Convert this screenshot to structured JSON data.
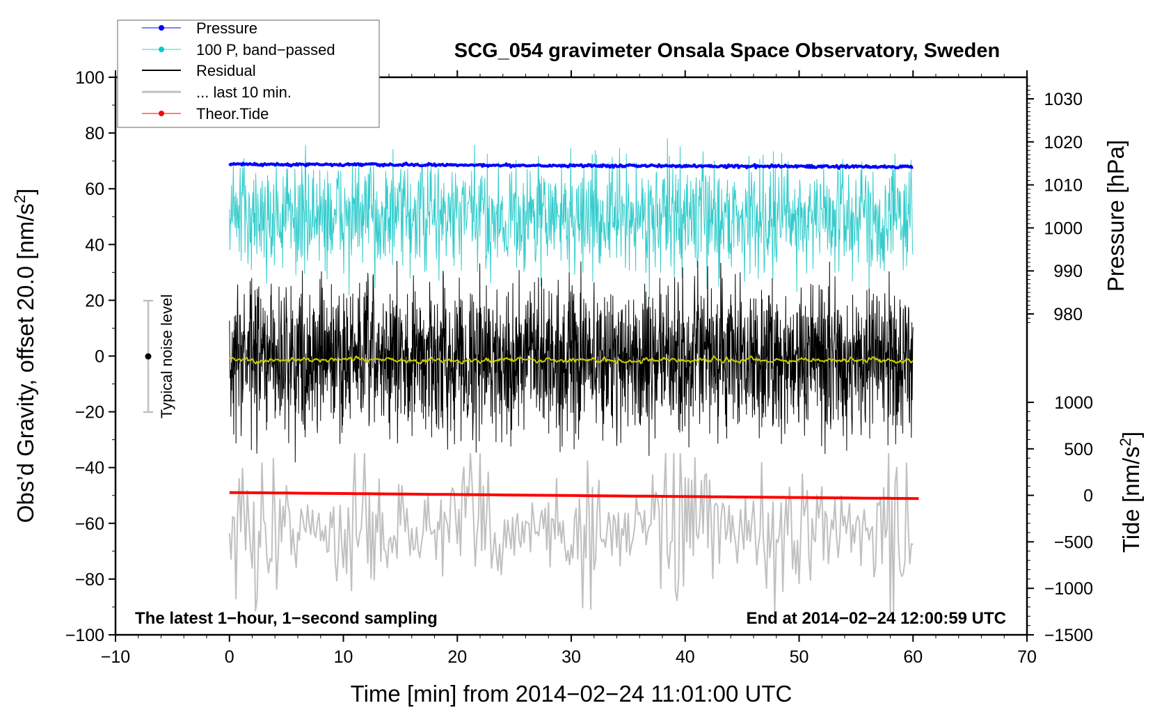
{
  "chart_data": {
    "type": "line",
    "title": "SCG_054 gravimeter Onsala Space Observatory, Sweden",
    "xlabel": "Time [min] from 2014−02−24 11:01:00 UTC",
    "ylabel": "Obs’d Gravity, offset 20.0 [nm/s²]",
    "ylabel_main": "Obs’d Gravity, offset 20.0 [nm/s",
    "ylabel_sup": "2",
    "ylabel_close": "]",
    "y2label": "Pressure [hPa]",
    "y3label_main": "Tide [nm/s",
    "y3label_sup": "2",
    "y3label_close": "]",
    "xlim": [
      -10,
      70
    ],
    "ylim": [
      -100,
      100
    ],
    "y2lim": [
      980,
      1030
    ],
    "y3lim": [
      -1500,
      1000
    ],
    "xticks": [
      "−10",
      "0",
      "10",
      "20",
      "30",
      "40",
      "50",
      "60",
      "70"
    ],
    "xtick_values": [
      -10,
      0,
      10,
      20,
      30,
      40,
      50,
      60,
      70
    ],
    "yticks": [
      "100",
      "80",
      "60",
      "40",
      "20",
      "0",
      "−20",
      "−40",
      "−60",
      "−80",
      "−100"
    ],
    "ytick_values": [
      100,
      80,
      60,
      40,
      20,
      0,
      -20,
      -40,
      -60,
      -80,
      -100
    ],
    "y2ticks": [
      "1030",
      "1020",
      "1010",
      "1000",
      "990",
      "980"
    ],
    "y2tick_values": [
      1030,
      1020,
      1010,
      1000,
      990,
      980
    ],
    "y3ticks": [
      "1000",
      "500",
      "0",
      "−500",
      "−1000",
      "−1500"
    ],
    "y3tick_values": [
      1000,
      500,
      0,
      -500,
      -1000,
      -1500
    ],
    "legend": {
      "placement": "top-left",
      "entries": [
        "Pressure",
        "100 P, band−passed",
        "Residual",
        "... last 10 min.",
        "Theor.Tide"
      ]
    },
    "series": [
      {
        "name": "Pressure",
        "axis": "pressure",
        "color": "#0000ff",
        "x_range": [
          0,
          60
        ],
        "start": 1014.8,
        "end": 1014.2,
        "noise": 0.15
      },
      {
        "name": "100 P, band−passed",
        "axis": "gravity",
        "color": "#33cccc",
        "x_range": [
          0,
          60
        ],
        "center": 50,
        "noise": 10,
        "spike_max": 82,
        "spike_min": 17
      },
      {
        "name": "Residual",
        "axis": "gravity",
        "color": "#000000",
        "x_range": [
          0,
          60
        ],
        "center": -1,
        "noise": 13,
        "spike_max": 34,
        "spike_min": -38
      },
      {
        "name": "Residual smoothed",
        "axis": "gravity",
        "color": "#cccc00",
        "x_range": [
          0,
          60
        ],
        "center": -1.5,
        "noise": 1.2
      },
      {
        "name": "... last 10 min.",
        "axis": "gravity",
        "color": "#c0c0c0",
        "x_range": [
          0,
          60
        ],
        "center": -62,
        "noise": 13,
        "spike_max": -35,
        "spike_min": -92
      },
      {
        "name": "Theor.Tide",
        "axis": "tide",
        "color": "#ff0000",
        "x_range": [
          0,
          60.5
        ],
        "start": 30,
        "end": -35
      }
    ],
    "noise_bar": {
      "label": "Typical noise level",
      "x": -7,
      "center": 0,
      "range": [
        -20,
        20
      ]
    },
    "annotations": {
      "left": "The latest 1−hour, 1−second sampling",
      "right": "End at 2014−02−24 12:00:59 UTC"
    },
    "grid": false
  }
}
